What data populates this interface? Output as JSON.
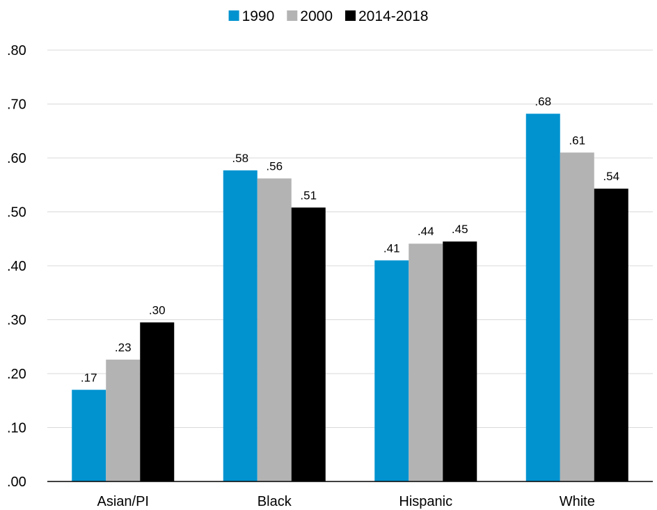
{
  "chart_data": {
    "type": "bar",
    "categories": [
      "Asian/PI",
      "Black",
      "Hispanic",
      "White"
    ],
    "series": [
      {
        "name": "1990",
        "color": "#0093d0",
        "values": [
          0.17,
          0.577,
          0.41,
          0.682
        ],
        "labels": [
          ".17",
          ".58",
          ".41",
          ".68"
        ]
      },
      {
        "name": "2000",
        "color": "#b3b3b3",
        "values": [
          0.226,
          0.562,
          0.441,
          0.61
        ],
        "labels": [
          ".23",
          ".56",
          ".44",
          ".61"
        ]
      },
      {
        "name": "2014-2018",
        "color": "#000000",
        "values": [
          0.295,
          0.508,
          0.445,
          0.543
        ],
        "labels": [
          ".30",
          ".51",
          ".45",
          ".54"
        ]
      }
    ],
    "ylim": [
      0,
      0.8
    ],
    "yticks": [
      0,
      0.1,
      0.2,
      0.3,
      0.4,
      0.5,
      0.6,
      0.7,
      0.8
    ],
    "ytick_labels": [
      ".00",
      ".10",
      ".20",
      ".30",
      ".40",
      ".50",
      ".60",
      ".70",
      ".80"
    ],
    "grid": true,
    "legend_position": "top-center",
    "title": "",
    "xlabel": "",
    "ylabel": ""
  }
}
